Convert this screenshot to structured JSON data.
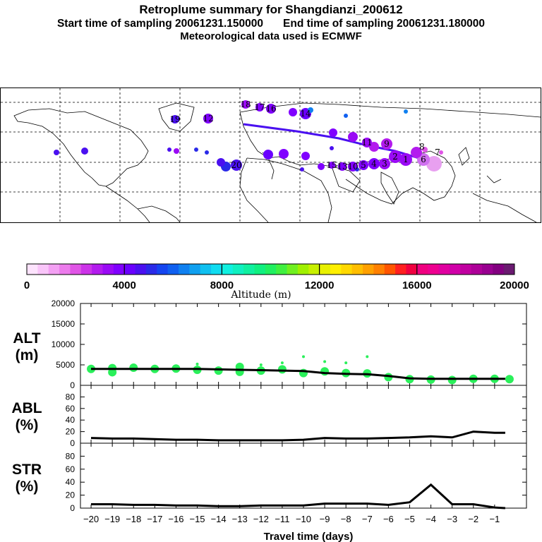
{
  "title": {
    "line1": "Retroplume summary for Shangdianzi_200612",
    "start": "Start time of sampling 20061231.150000",
    "end": "End time of sampling 20061231.180000",
    "line3": "Meteorological data used is ECMWF"
  },
  "colorbar": {
    "title": "Altitude (m)",
    "ticks": [
      "0",
      "4000",
      "8000",
      "12000",
      "16000",
      "20000"
    ],
    "colors": [
      "#fde3fd",
      "#f9c5f9",
      "#f3a0f3",
      "#ec7bec",
      "#e055e6",
      "#cc33e8",
      "#b31bee",
      "#9a0af5",
      "#8000ff",
      "#6a00ff",
      "#4a10f0",
      "#2a2ae8",
      "#1545f0",
      "#1060f0",
      "#1080f0",
      "#10a0f0",
      "#10c0f0",
      "#10dcf0",
      "#10f0e0",
      "#10f0c0",
      "#10f0a0",
      "#10f080",
      "#20f060",
      "#40f040",
      "#70f020",
      "#a0f000",
      "#c8f000",
      "#e8f000",
      "#ffef00",
      "#ffd800",
      "#ffbe00",
      "#ffa000",
      "#ff8000",
      "#ff5500",
      "#ff2020",
      "#f00040",
      "#f00080",
      "#ee0090",
      "#e000a0",
      "#d000a8",
      "#c000a0",
      "#ad0098",
      "#980090",
      "#820080",
      "#6a1a70"
    ]
  },
  "map": {
    "plume_labels": [
      "1",
      "2",
      "3",
      "4",
      "5",
      "6",
      "7",
      "8",
      "9",
      "10",
      "11",
      "12",
      "13",
      "14",
      "15",
      "16",
      "17",
      "18",
      "19",
      "20"
    ]
  },
  "chart_data": [
    {
      "type": "line",
      "panel": "ALT",
      "ylabel": "ALT (m)",
      "ylim": [
        0,
        20000
      ],
      "yticks": [
        "0",
        "5000",
        "10000",
        "15000",
        "20000"
      ],
      "x": [
        -20,
        -19,
        -18,
        -17,
        -16,
        -15,
        -14,
        -13,
        -12,
        -11,
        -10,
        -9,
        -8,
        -7,
        -6,
        -5,
        -4,
        -3,
        -2,
        -1,
        -0.5
      ],
      "values": [
        4000,
        4000,
        4000,
        4000,
        4000,
        4000,
        3900,
        3800,
        3700,
        3600,
        3500,
        3000,
        2800,
        2700,
        2300,
        1700,
        1600,
        1600,
        1600,
        1600,
        1600
      ],
      "scatter_color": "#2af05a",
      "scatter_points": [
        [
          -20,
          4000
        ],
        [
          -19,
          4200
        ],
        [
          -18,
          4300
        ],
        [
          -17,
          4000
        ],
        [
          -16,
          4100
        ],
        [
          -15,
          3800
        ],
        [
          -14,
          3600
        ],
        [
          -13,
          3300
        ],
        [
          -12,
          3600
        ],
        [
          -11,
          3900
        ],
        [
          -10,
          3000
        ],
        [
          -9,
          3400
        ],
        [
          -8,
          3000
        ],
        [
          -7,
          2900
        ],
        [
          -6,
          2000
        ],
        [
          -5,
          1500
        ],
        [
          -4,
          1400
        ],
        [
          -3,
          1300
        ],
        [
          -2,
          1600
        ],
        [
          -1,
          1600
        ],
        [
          -0.3,
          1500
        ],
        [
          -10,
          7000
        ],
        [
          -9,
          5800
        ],
        [
          -8,
          5500
        ],
        [
          -7,
          7000
        ],
        [
          -12,
          5000
        ],
        [
          -15,
          5200
        ],
        [
          -11,
          5500
        ],
        [
          -19,
          3200
        ],
        [
          -13,
          4500
        ]
      ]
    },
    {
      "type": "line",
      "panel": "ABL",
      "ylabel": "ABL (%)",
      "ylim": [
        0,
        100
      ],
      "yticks": [
        "0",
        "20",
        "40",
        "60",
        "80"
      ],
      "x": [
        -20,
        -19,
        -18,
        -17,
        -16,
        -15,
        -14,
        -13,
        -12,
        -11,
        -10,
        -9,
        -8,
        -7,
        -6,
        -5,
        -4,
        -3,
        -2,
        -1,
        -0.5
      ],
      "values": [
        9,
        8,
        8,
        7,
        6,
        6,
        5,
        5,
        5,
        5,
        6,
        9,
        8,
        8,
        9,
        10,
        12,
        10,
        20,
        18,
        18
      ]
    },
    {
      "type": "line",
      "panel": "STR",
      "ylabel": "STR (%)",
      "ylim": [
        0,
        100
      ],
      "yticks": [
        "0",
        "20",
        "40",
        "60",
        "80"
      ],
      "x": [
        -20,
        -19,
        -18,
        -17,
        -16,
        -15,
        -14,
        -13,
        -12,
        -11,
        -10,
        -9,
        -8,
        -7,
        -6,
        -5,
        -4,
        -3,
        -2,
        -1,
        -0.5
      ],
      "values": [
        6,
        6,
        5,
        5,
        4,
        4,
        3,
        3,
        4,
        4,
        4,
        7,
        7,
        7,
        5,
        9,
        36,
        6,
        6,
        1,
        0
      ]
    }
  ],
  "xaxis": {
    "title": "Travel time (days)",
    "ticks": [
      "−20",
      "−19",
      "−18",
      "−17",
      "−16",
      "−15",
      "−14",
      "−13",
      "−12",
      "−11",
      "−10",
      "−9",
      "−8",
      "−7",
      "−6",
      "−5",
      "−4",
      "−3",
      "−2",
      "−1"
    ]
  }
}
